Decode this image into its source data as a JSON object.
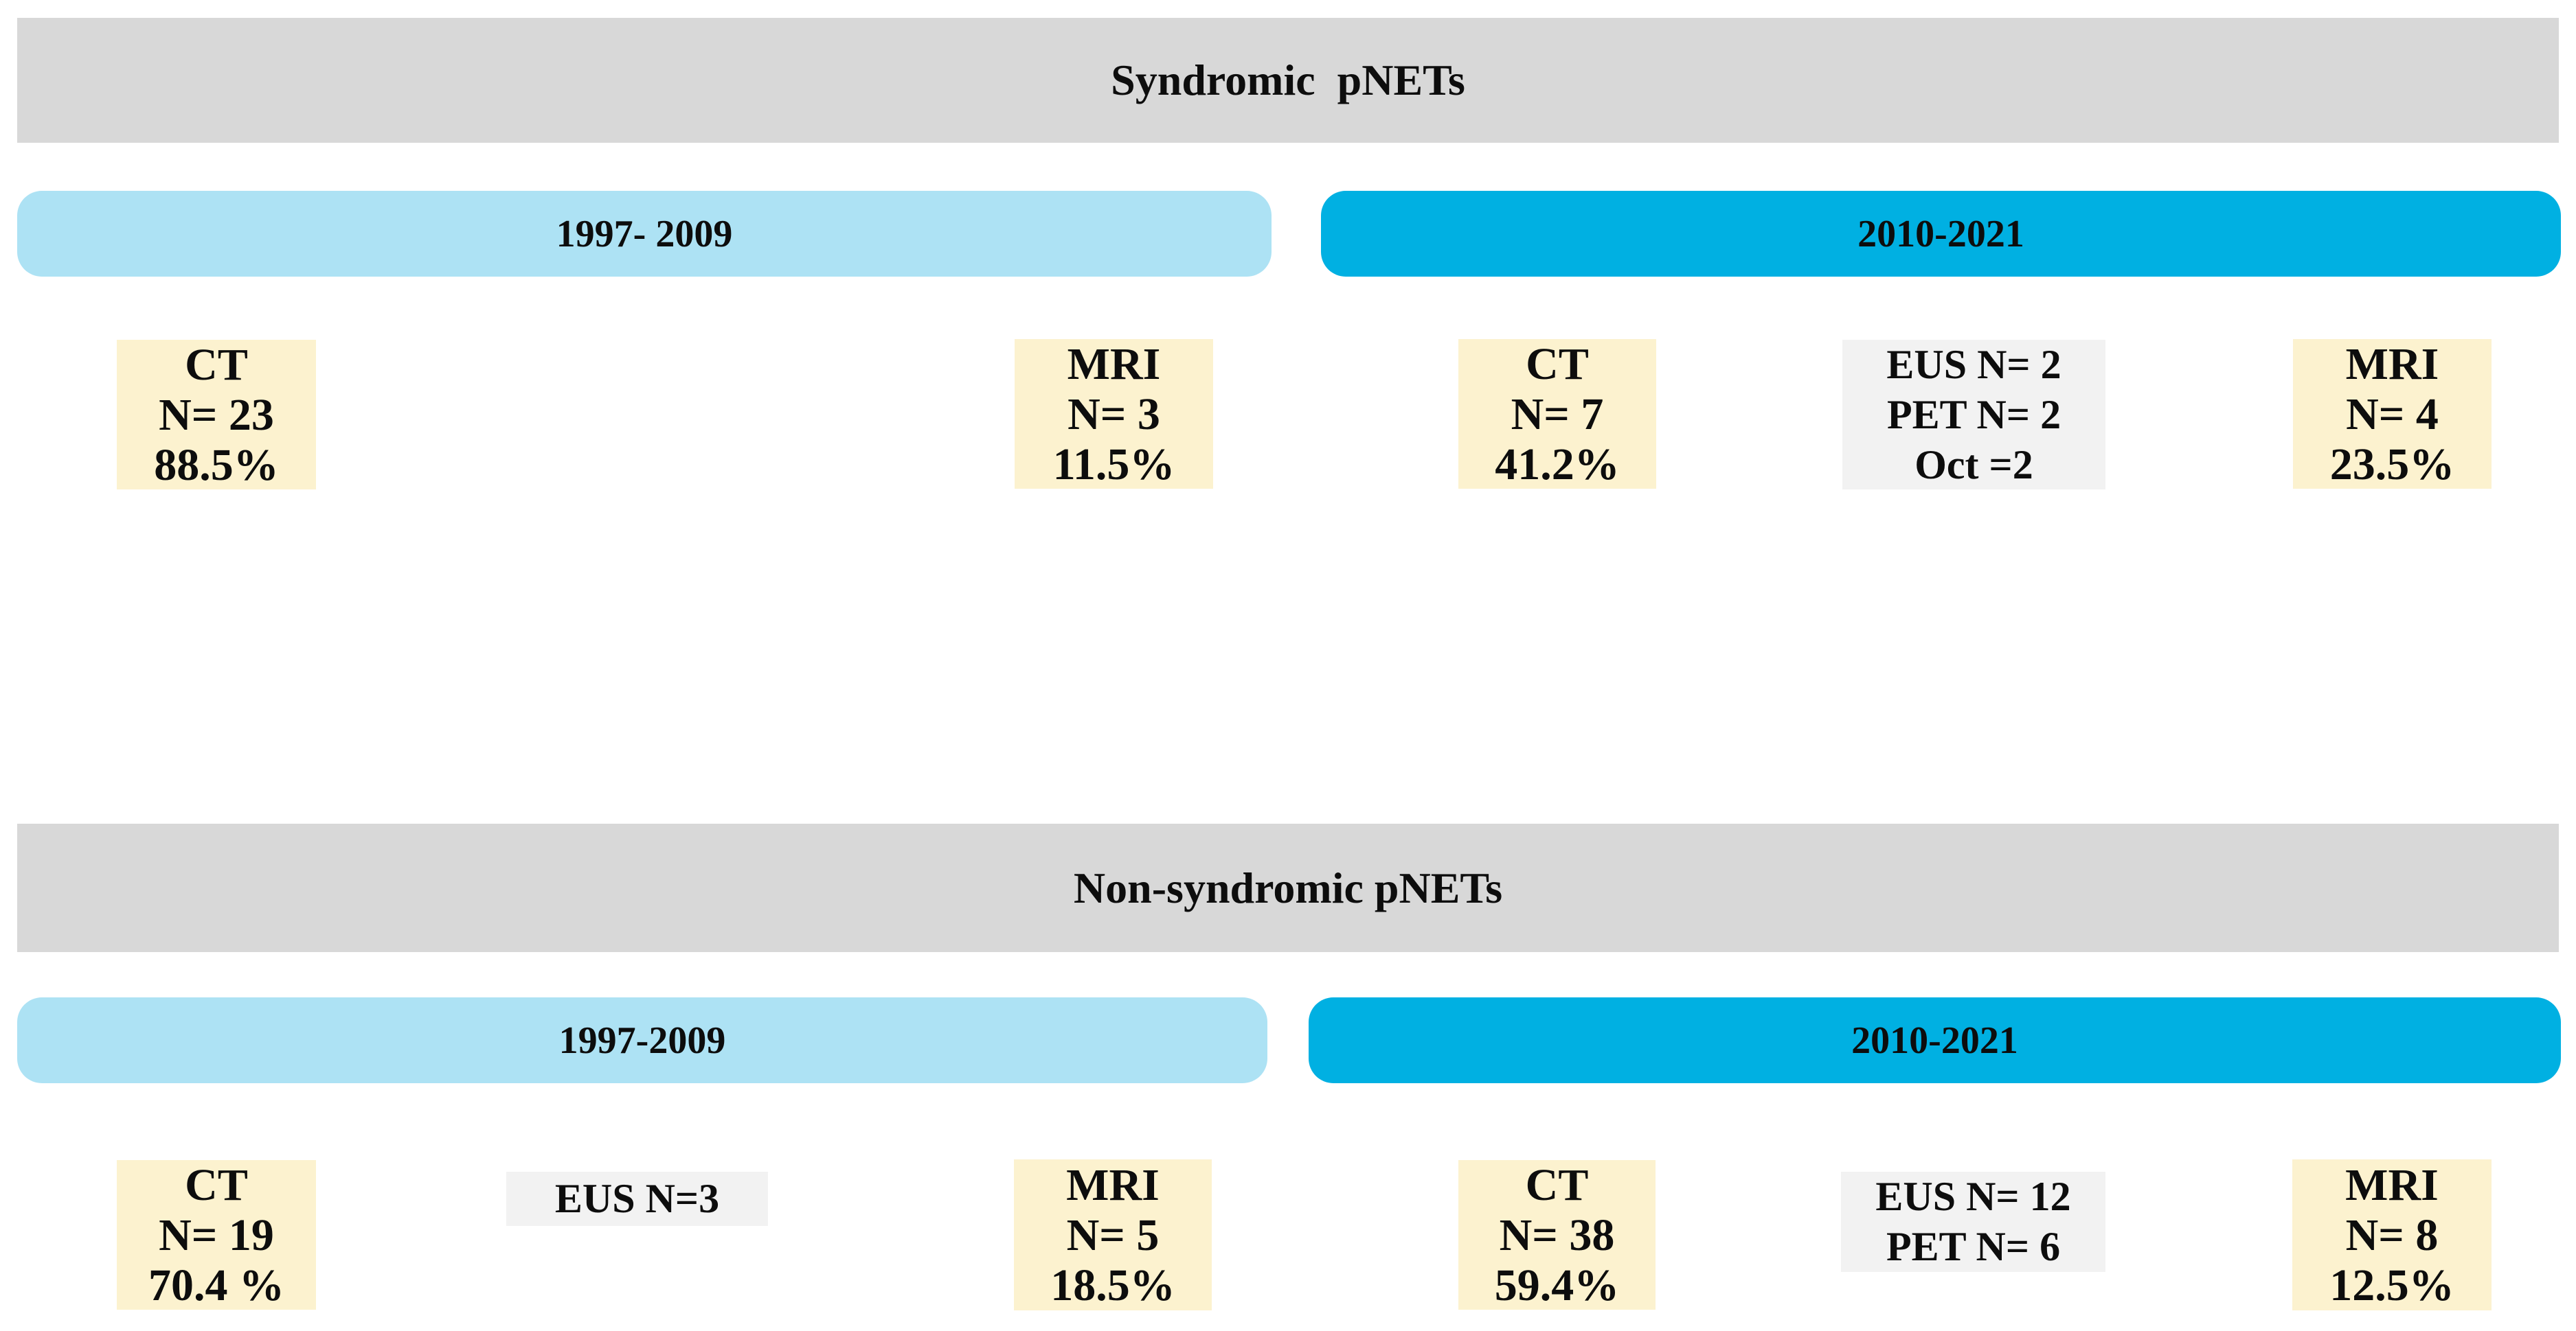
{
  "colors": {
    "banner_bg": "#d8d8d8",
    "period_early_bg": "#ade2f4",
    "period_late_bg": "#00b0e2",
    "modality_yellow_bg": "#fcf2cf",
    "modality_gray_bg": "#f2f2f2",
    "text": "#0d0d0d"
  },
  "syndromic": {
    "banner_title": "Syndromic  pNETs",
    "period_early_label": "1997- 2009",
    "period_late_label": "2010-2021",
    "boxes": {
      "ct_early": {
        "line1": "CT",
        "line2": "N= 23",
        "line3": "88.5%"
      },
      "mri_early": {
        "line1": "MRI",
        "line2": "N= 3",
        "line3": "11.5%"
      },
      "ct_late": {
        "line1": "CT",
        "line2": "N= 7",
        "line3": "41.2%"
      },
      "other_late": {
        "line1": "EUS N= 2",
        "line2": "PET N= 2",
        "line3": "Oct =2"
      },
      "mri_late": {
        "line1": "MRI",
        "line2": "N= 4",
        "line3": "23.5%"
      }
    }
  },
  "nonsyndromic": {
    "banner_title": "Non-syndromic pNETs",
    "period_early_label": "1997-2009",
    "period_late_label": "2010-2021",
    "boxes": {
      "ct_early": {
        "line1": "CT",
        "line2": "N= 19",
        "line3": "70.4 %"
      },
      "eus_early": {
        "line1": "EUS N=3"
      },
      "mri_early": {
        "line1": "MRI",
        "line2": "N= 5",
        "line3": "18.5%"
      },
      "ct_late": {
        "line1": "CT",
        "line2": "N= 38",
        "line3": "59.4%"
      },
      "other_late": {
        "line1": "EUS N= 12",
        "line2": "PET N= 6"
      },
      "mri_late": {
        "line1": "MRI",
        "line2": "N= 8",
        "line3": "12.5%"
      }
    }
  }
}
